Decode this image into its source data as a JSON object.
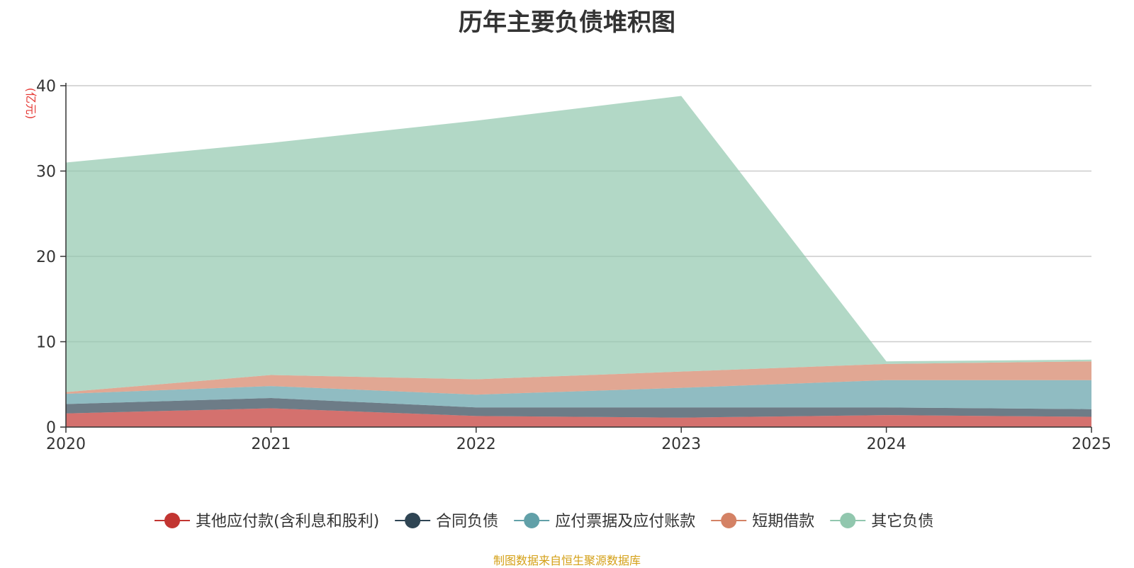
{
  "chart_data": {
    "type": "area",
    "stacked": true,
    "title": "历年主要负债堆积图",
    "ylabel": "(亿元)",
    "x": [
      "2020",
      "2021",
      "2022",
      "2023",
      "2024",
      "2025"
    ],
    "yticks": [
      "0",
      "10",
      "20",
      "30",
      "40"
    ],
    "ylim": [
      0,
      40
    ],
    "grid": true,
    "legend_position": "bottom",
    "series": [
      {
        "name": "其他应付款(含利息和股利)",
        "color": "#c23531",
        "values": [
          1.6,
          2.2,
          1.3,
          1.1,
          1.4,
          1.2
        ]
      },
      {
        "name": "合同负债",
        "color": "#2f4554",
        "values": [
          1.1,
          1.2,
          1.0,
          1.2,
          0.9,
          0.9
        ]
      },
      {
        "name": "应付票据及应付账款",
        "color": "#61a0a8",
        "values": [
          1.2,
          1.4,
          1.5,
          2.3,
          3.2,
          3.4
        ]
      },
      {
        "name": "短期借款",
        "color": "#d48265",
        "values": [
          0.2,
          1.3,
          1.8,
          1.9,
          1.9,
          2.2
        ]
      },
      {
        "name": "其它负债",
        "color": "#91c7ae",
        "values": [
          26.9,
          27.2,
          30.3,
          32.3,
          0.3,
          0.2
        ]
      }
    ]
  },
  "source_note": "制图数据来自恒生聚源数据库"
}
